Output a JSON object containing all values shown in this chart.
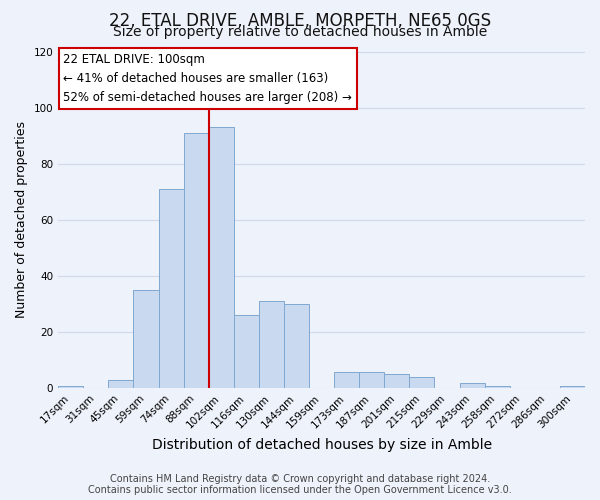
{
  "title": "22, ETAL DRIVE, AMBLE, MORPETH, NE65 0GS",
  "subtitle": "Size of property relative to detached houses in Amble",
  "xlabel": "Distribution of detached houses by size in Amble",
  "ylabel": "Number of detached properties",
  "bar_labels": [
    "17sqm",
    "31sqm",
    "45sqm",
    "59sqm",
    "74sqm",
    "88sqm",
    "102sqm",
    "116sqm",
    "130sqm",
    "144sqm",
    "159sqm",
    "173sqm",
    "187sqm",
    "201sqm",
    "215sqm",
    "229sqm",
    "243sqm",
    "258sqm",
    "272sqm",
    "286sqm",
    "300sqm"
  ],
  "bar_values": [
    1,
    0,
    3,
    35,
    71,
    91,
    93,
    26,
    31,
    30,
    0,
    6,
    6,
    5,
    4,
    0,
    2,
    1,
    0,
    0,
    1
  ],
  "bar_color": "#c9d9f0",
  "bar_edge_color": "#7fa8d0",
  "vline_color": "#cc0000",
  "vline_x_index": 6,
  "annotation_text": "22 ETAL DRIVE: 100sqm\n← 41% of detached houses are smaller (163)\n52% of semi-detached houses are larger (208) →",
  "annotation_box_color": "#ffffff",
  "annotation_box_edge_color": "#cc0000",
  "ylim": [
    0,
    120
  ],
  "yticks": [
    0,
    20,
    40,
    60,
    80,
    100,
    120
  ],
  "footnote1": "Contains HM Land Registry data © Crown copyright and database right 2024.",
  "footnote2": "Contains public sector information licensed under the Open Government Licence v3.0.",
  "background_color": "#eef2fa",
  "grid_color": "#d0d8ec",
  "title_fontsize": 12,
  "subtitle_fontsize": 10,
  "xlabel_fontsize": 10,
  "ylabel_fontsize": 9,
  "tick_fontsize": 7.5,
  "annotation_fontsize": 8.5,
  "footnote_fontsize": 7
}
